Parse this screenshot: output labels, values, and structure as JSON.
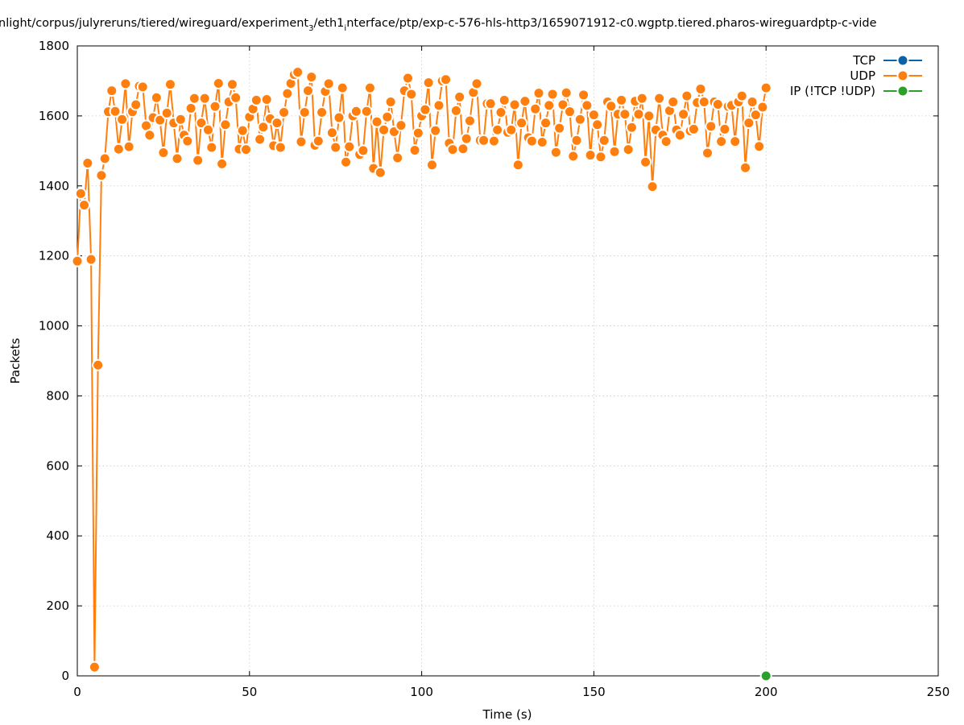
{
  "chart_data": {
    "type": "line",
    "title": "nlight/corpus/julyreruns/tiered/wireguard/experiment",
    "title_sub": "3",
    "title_mid": "/eth1",
    "title_sub2": "i",
    "title_end": "nterface/ptp/exp-c-576-hls-http3/1659071912-c0.wgptp.tiered.pharos-wireguardptp-c-vide",
    "xlabel": "Time (s)",
    "ylabel": "Packets",
    "xlim": [
      0,
      250
    ],
    "ylim": [
      0,
      1800
    ],
    "xticks": [
      0,
      50,
      100,
      150,
      200,
      250
    ],
    "yticks": [
      0,
      200,
      400,
      600,
      800,
      1000,
      1200,
      1400,
      1600,
      1800
    ],
    "xtick_labels": [
      "0",
      "50",
      "100",
      "150",
      "200",
      "250"
    ],
    "ytick_labels": [
      "0",
      "200",
      "400",
      "600",
      "800",
      "1000",
      "1200",
      "1400",
      "1600",
      "1800"
    ],
    "grid": true,
    "legend_position": "top-right",
    "series": [
      {
        "name": "TCP",
        "color": "#0b62a4",
        "points": []
      },
      {
        "name": "UDP",
        "color": "#ff7f0e",
        "points": [
          [
            0,
            1185
          ],
          [
            1,
            1378
          ],
          [
            2,
            1345
          ],
          [
            3,
            1465
          ],
          [
            4,
            1190
          ],
          [
            5,
            25
          ],
          [
            6,
            888
          ],
          [
            7,
            1430
          ],
          [
            8,
            1478
          ],
          [
            9,
            1612
          ],
          [
            10,
            1672
          ],
          [
            11,
            1613
          ],
          [
            12,
            1505
          ],
          [
            13,
            1590
          ],
          [
            14,
            1692
          ],
          [
            15,
            1512
          ],
          [
            16,
            1612
          ],
          [
            17,
            1632
          ],
          [
            18,
            1685
          ],
          [
            19,
            1683
          ],
          [
            20,
            1572
          ],
          [
            21,
            1545
          ],
          [
            22,
            1595
          ],
          [
            23,
            1652
          ],
          [
            24,
            1588
          ],
          [
            25,
            1495
          ],
          [
            26,
            1608
          ],
          [
            27,
            1690
          ],
          [
            28,
            1580
          ],
          [
            29,
            1478
          ],
          [
            30,
            1590
          ],
          [
            31,
            1545
          ],
          [
            32,
            1528
          ],
          [
            33,
            1622
          ],
          [
            34,
            1650
          ],
          [
            35,
            1473
          ],
          [
            36,
            1580
          ],
          [
            37,
            1650
          ],
          [
            38,
            1560
          ],
          [
            39,
            1510
          ],
          [
            40,
            1627
          ],
          [
            41,
            1693
          ],
          [
            42,
            1463
          ],
          [
            43,
            1575
          ],
          [
            44,
            1640
          ],
          [
            45,
            1690
          ],
          [
            46,
            1652
          ],
          [
            47,
            1505
          ],
          [
            48,
            1558
          ],
          [
            49,
            1504
          ],
          [
            50,
            1597
          ],
          [
            51,
            1620
          ],
          [
            52,
            1645
          ],
          [
            53,
            1533
          ],
          [
            54,
            1568
          ],
          [
            55,
            1647
          ],
          [
            56,
            1592
          ],
          [
            57,
            1515
          ],
          [
            58,
            1580
          ],
          [
            59,
            1510
          ],
          [
            60,
            1610
          ],
          [
            61,
            1664
          ],
          [
            62,
            1693
          ],
          [
            63,
            1718
          ],
          [
            64,
            1725
          ],
          [
            65,
            1526
          ],
          [
            66,
            1610
          ],
          [
            67,
            1672
          ],
          [
            68,
            1711
          ],
          [
            69,
            1516
          ],
          [
            70,
            1528
          ],
          [
            71,
            1610
          ],
          [
            72,
            1670
          ],
          [
            73,
            1692
          ],
          [
            74,
            1552
          ],
          [
            75,
            1510
          ],
          [
            76,
            1595
          ],
          [
            77,
            1680
          ],
          [
            78,
            1468
          ],
          [
            79,
            1512
          ],
          [
            80,
            1600
          ],
          [
            81,
            1613
          ],
          [
            82,
            1490
          ],
          [
            83,
            1501
          ],
          [
            84,
            1613
          ],
          [
            85,
            1680
          ],
          [
            86,
            1450
          ],
          [
            87,
            1583
          ],
          [
            88,
            1438
          ],
          [
            89,
            1560
          ],
          [
            90,
            1597
          ],
          [
            91,
            1640
          ],
          [
            92,
            1555
          ],
          [
            93,
            1480
          ],
          [
            94,
            1573
          ],
          [
            95,
            1672
          ],
          [
            96,
            1708
          ],
          [
            97,
            1662
          ],
          [
            98,
            1502
          ],
          [
            99,
            1551
          ],
          [
            100,
            1600
          ],
          [
            101,
            1618
          ],
          [
            102,
            1695
          ],
          [
            103,
            1460
          ],
          [
            104,
            1558
          ],
          [
            105,
            1630
          ],
          [
            106,
            1700
          ],
          [
            107,
            1704
          ],
          [
            108,
            1522
          ],
          [
            109,
            1504
          ],
          [
            110,
            1615
          ],
          [
            111,
            1654
          ],
          [
            112,
            1506
          ],
          [
            113,
            1535
          ],
          [
            114,
            1586
          ],
          [
            115,
            1667
          ],
          [
            116,
            1692
          ],
          [
            117,
            1530
          ],
          [
            118,
            1530
          ],
          [
            119,
            1635
          ],
          [
            120,
            1635
          ],
          [
            121,
            1528
          ],
          [
            122,
            1560
          ],
          [
            123,
            1610
          ],
          [
            124,
            1645
          ],
          [
            125,
            1553
          ],
          [
            126,
            1560
          ],
          [
            127,
            1632
          ],
          [
            128,
            1460
          ],
          [
            129,
            1580
          ],
          [
            130,
            1642
          ],
          [
            131,
            1538
          ],
          [
            132,
            1528
          ],
          [
            133,
            1620
          ],
          [
            134,
            1665
          ],
          [
            135,
            1525
          ],
          [
            136,
            1580
          ],
          [
            137,
            1630
          ],
          [
            138,
            1662
          ],
          [
            139,
            1496
          ],
          [
            140,
            1565
          ],
          [
            141,
            1632
          ],
          [
            142,
            1666
          ],
          [
            143,
            1612
          ],
          [
            144,
            1485
          ],
          [
            145,
            1530
          ],
          [
            146,
            1590
          ],
          [
            147,
            1660
          ],
          [
            148,
            1630
          ],
          [
            149,
            1488
          ],
          [
            150,
            1603
          ],
          [
            151,
            1575
          ],
          [
            152,
            1483
          ],
          [
            153,
            1530
          ],
          [
            154,
            1640
          ],
          [
            155,
            1628
          ],
          [
            156,
            1498
          ],
          [
            157,
            1605
          ],
          [
            158,
            1645
          ],
          [
            159,
            1605
          ],
          [
            160,
            1504
          ],
          [
            161,
            1567
          ],
          [
            162,
            1642
          ],
          [
            163,
            1605
          ],
          [
            164,
            1650
          ],
          [
            165,
            1468
          ],
          [
            166,
            1600
          ],
          [
            167,
            1398
          ],
          [
            168,
            1560
          ],
          [
            169,
            1650
          ],
          [
            170,
            1545
          ],
          [
            171,
            1527
          ],
          [
            172,
            1615
          ],
          [
            173,
            1640
          ],
          [
            174,
            1560
          ],
          [
            175,
            1545
          ],
          [
            176,
            1605
          ],
          [
            177,
            1657
          ],
          [
            178,
            1557
          ],
          [
            179,
            1562
          ],
          [
            180,
            1638
          ],
          [
            181,
            1677
          ],
          [
            182,
            1640
          ],
          [
            183,
            1494
          ],
          [
            184,
            1570
          ],
          [
            185,
            1640
          ],
          [
            186,
            1633
          ],
          [
            187,
            1527
          ],
          [
            188,
            1562
          ],
          [
            189,
            1627
          ],
          [
            190,
            1630
          ],
          [
            191,
            1527
          ],
          [
            192,
            1640
          ],
          [
            193,
            1657
          ],
          [
            194,
            1452
          ],
          [
            195,
            1580
          ],
          [
            196,
            1640
          ],
          [
            197,
            1603
          ],
          [
            198,
            1513
          ],
          [
            199,
            1625
          ],
          [
            200,
            1680
          ]
        ]
      },
      {
        "name": "IP (!TCP  !UDP)",
        "color": "#2ca02c",
        "points": [
          [
            200,
            0
          ]
        ]
      }
    ]
  }
}
